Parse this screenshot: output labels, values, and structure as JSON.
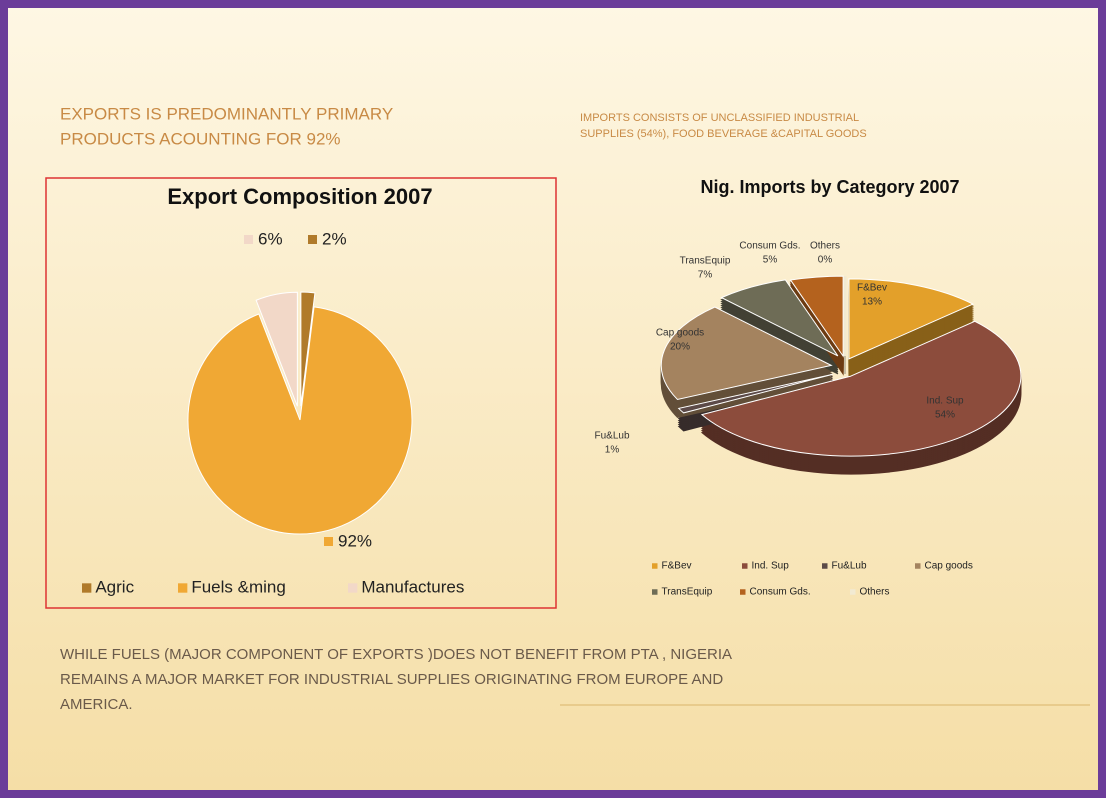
{
  "slide": {
    "heading_left": [
      "EXPORTS IS PREDOMINANTLY PRIMARY",
      "PRODUCTS  ACOUNTING FOR 92%"
    ],
    "heading_right": [
      "IMPORTS  CONSISTS  OF UNCLASSIFIED  INDUSTRIAL",
      "SUPPLIES (54%),  FOOD BEVERAGE &CAPITAL   GOODS"
    ],
    "footer": [
      "WHILE FUELS (MAJOR COMPONENT OF EXPORTS )DOES NOT BENEFIT FROM PTA , NIGERIA",
      "REMAINS A MAJOR MARKET FOR INDUSTRIAL SUPPLIES ORIGINATING FROM EUROPE AND",
      "AMERICA."
    ]
  },
  "chart_data": [
    {
      "type": "pie",
      "title": "Export Composition 2007",
      "categories": [
        "Agric",
        "Fuels &ming",
        "Manufactures"
      ],
      "values": [
        2,
        92,
        6
      ],
      "value_labels": [
        "2%",
        "92%",
        "6%"
      ],
      "colors": [
        "#b07a2a",
        "#f0a834",
        "#f2d8c8"
      ],
      "legend": "bottom"
    },
    {
      "type": "pie3d",
      "title": "Nig. Imports by Category  2007",
      "categories": [
        "F&Bev",
        "Ind. Sup",
        "Fu&Lub",
        "Cap goods",
        "TransEquip",
        "Consum Gds.",
        "Others"
      ],
      "values": [
        13,
        54,
        1,
        20,
        7,
        5,
        0
      ],
      "value_labels": [
        "13%",
        "54%",
        "1%",
        "20%",
        "7%",
        "5%",
        "0%"
      ],
      "colors": [
        "#e3a02a",
        "#8c4c3c",
        "#5c4a48",
        "#a4835f",
        "#6e6c56",
        "#b4621e",
        "#f2ead2"
      ],
      "legend": "bottom"
    }
  ]
}
